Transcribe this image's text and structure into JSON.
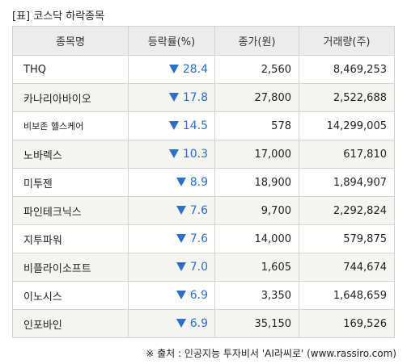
{
  "title": "[표] 코스닥 하락종목",
  "headers": [
    "종목명",
    "등락률(%)",
    "종가(원)",
    "거래량(주)"
  ],
  "rows": [
    {
      "name": "THQ",
      "rate": "28.4",
      "price": "2,560",
      "volume": "8,469,253"
    },
    {
      "name": "카나리아바이오",
      "rate": "17.8",
      "price": "27,800",
      "volume": "2,522,688"
    },
    {
      "name": "비보존 헬스케어",
      "rate": "14.5",
      "price": "578",
      "volume": "14,299,005"
    },
    {
      "name": "노바렉스",
      "rate": "10.3",
      "price": "17,000",
      "volume": "617,810"
    },
    {
      "name": "미투젠",
      "rate": "8.9",
      "price": "18,900",
      "volume": "1,894,907"
    },
    {
      "name": "파인테크닉스",
      "rate": "7.6",
      "price": "9,700",
      "volume": "2,292,824"
    },
    {
      "name": "지투파워",
      "rate": "7.6",
      "price": "14,000",
      "volume": "579,875"
    },
    {
      "name": "비플라이소프트",
      "rate": "7.0",
      "price": "1,605",
      "volume": "744,674"
    },
    {
      "name": "이노시스",
      "rate": "6.9",
      "price": "3,350",
      "volume": "1,648,659"
    },
    {
      "name": "인포바인",
      "rate": "6.9",
      "price": "35,150",
      "volume": "169,526"
    }
  ],
  "source": "※ 출처 : 인공지능 투자비서 'AI라씨로' (www.rassiro.com)",
  "colors": {
    "down": "#2b6fc7",
    "header_bg": "#ececec",
    "alt_row_bg": "#f4f4f0"
  },
  "icons": {
    "rate_direction": "down-triangle-icon"
  }
}
